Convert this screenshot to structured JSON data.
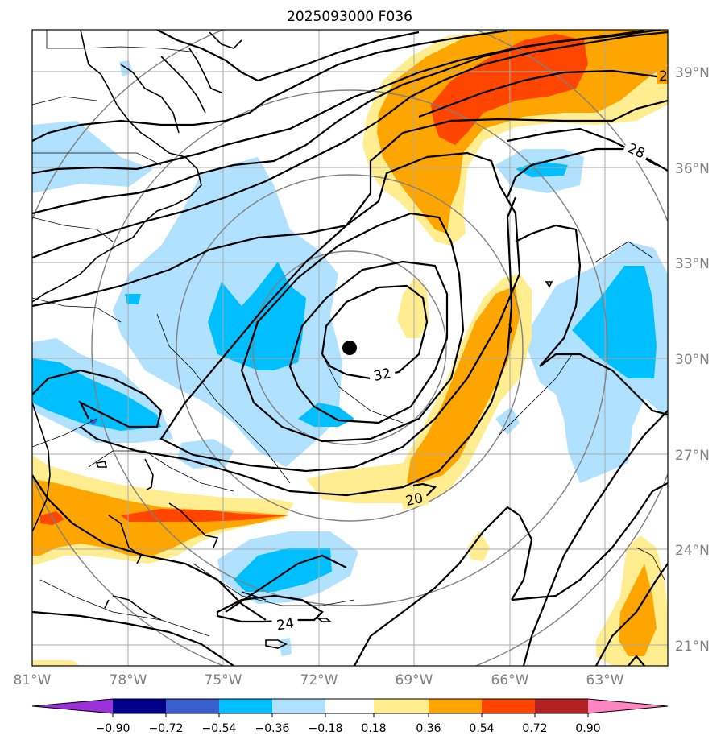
{
  "title": "2025093000 F036",
  "map": {
    "lat_labels": [
      "39°N",
      "36°N",
      "33°N",
      "30°N",
      "27°N",
      "24°N",
      "21°N"
    ],
    "lon_labels": [
      "81°W",
      "78°W",
      "75°W",
      "72°W",
      "69°W",
      "66°W",
      "63°W"
    ],
    "contour_labels": [
      "32",
      "28",
      "20",
      "24",
      "2"
    ],
    "storm_center": "storm-center-marker",
    "grid_color": "#aaaaaa",
    "range_ring_color": "#808080"
  },
  "colorbar": {
    "labels": [
      "−0.90",
      "−0.72",
      "−0.54",
      "−0.36",
      "−0.18",
      "0.18",
      "0.36",
      "0.54",
      "0.72",
      "0.90"
    ],
    "colors": [
      "#9b30d8",
      "#00008b",
      "#3a5fcd",
      "#00bfff",
      "#b0e2ff",
      "#ffffff",
      "#ffed8f",
      "#ffa500",
      "#ff4500",
      "#b22222",
      "#ff85c0"
    ]
  }
}
